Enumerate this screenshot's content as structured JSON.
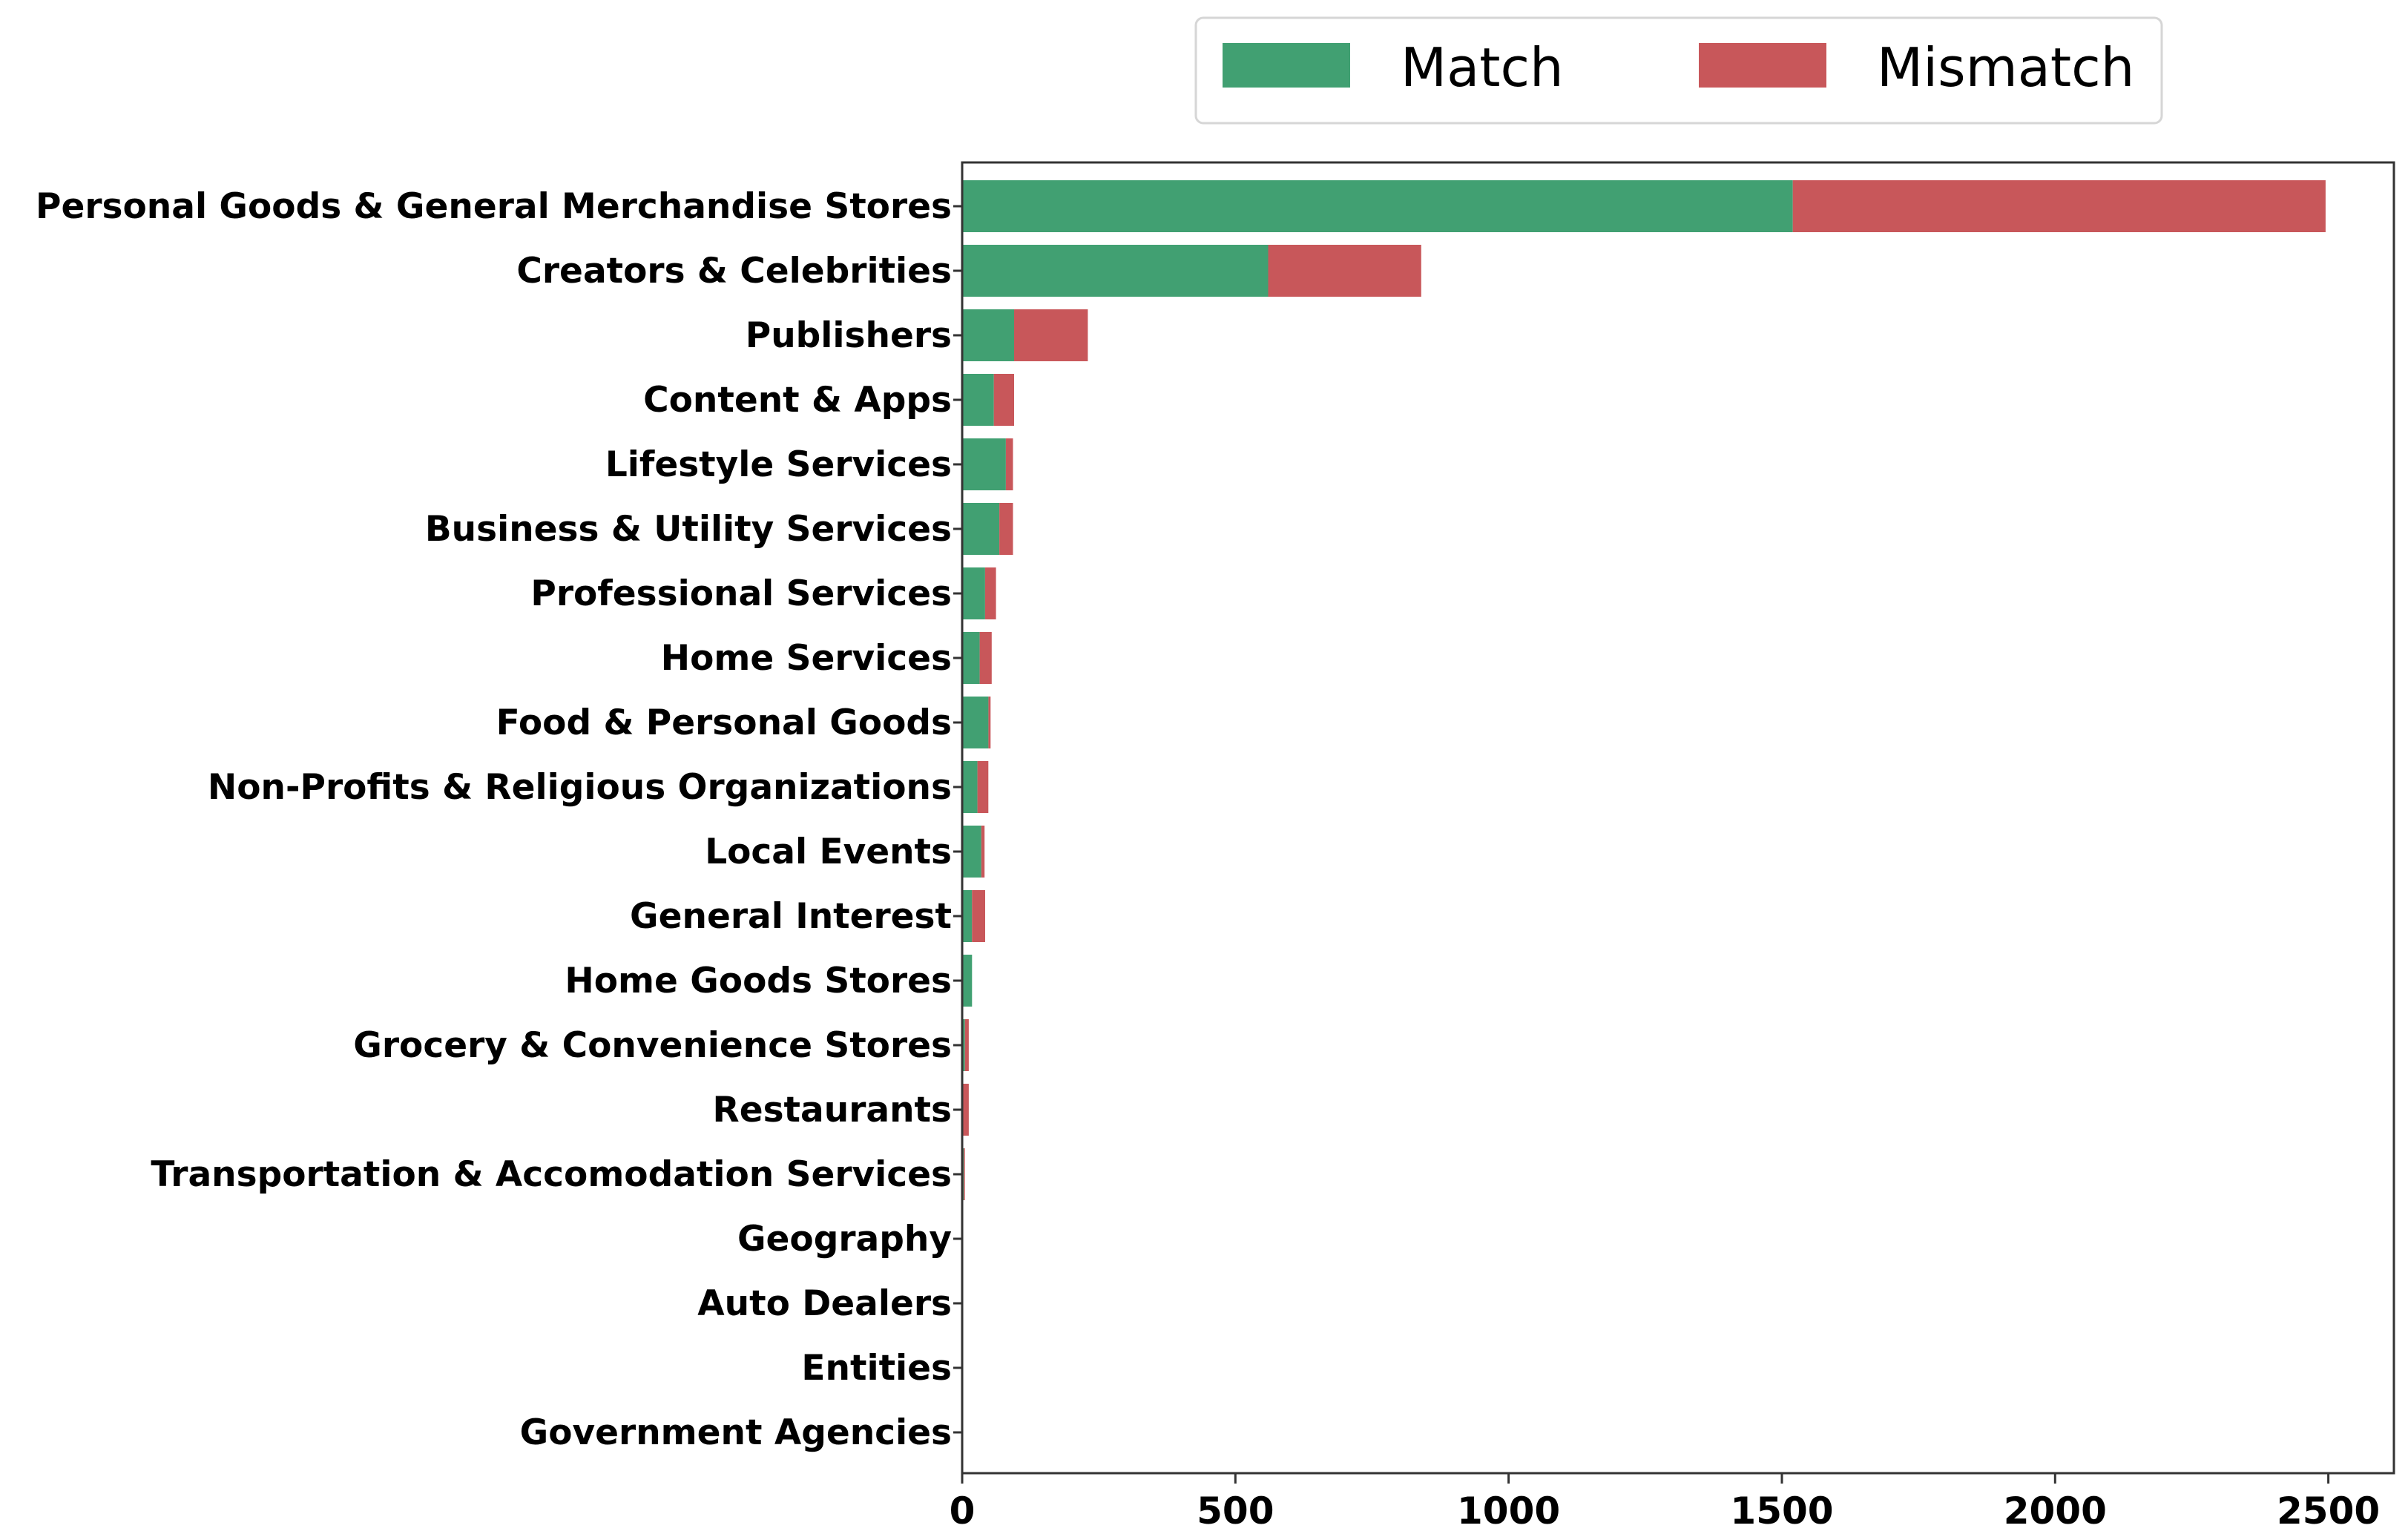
{
  "chart_data": {
    "type": "bar",
    "orientation": "horizontal",
    "stacked": true,
    "categories": [
      "Personal Goods & General Merchandise Stores",
      "Creators & Celebrities",
      "Publishers",
      "Content & Apps",
      "Lifestyle Services",
      "Business & Utility Services",
      "Professional Services",
      "Home Services",
      "Food & Personal Goods",
      "Non-Profits & Religious Organizations",
      "Local Events",
      "General Interest",
      "Home Goods Stores",
      "Grocery & Convenience Stores",
      "Restaurants",
      "Transportation & Accomodation Services",
      "Geography",
      "Auto Dealers",
      "Entities",
      "Government Agencies"
    ],
    "series": [
      {
        "name": "Match",
        "color": "#41a072",
        "values": [
          1520,
          560,
          95,
          58,
          80,
          68,
          42,
          32,
          48,
          28,
          35,
          18,
          18,
          5,
          2,
          3,
          1,
          0,
          0,
          0
        ]
      },
      {
        "name": "Mismatch",
        "color": "#c8575a",
        "values": [
          975,
          280,
          135,
          37,
          13,
          25,
          20,
          22,
          4,
          20,
          6,
          24,
          0,
          7,
          10,
          2,
          0,
          0,
          0,
          0
        ]
      }
    ],
    "xlim": [
      0,
      2620
    ],
    "xticks": [
      "0",
      "500",
      "1000",
      "1500",
      "2000",
      "2500"
    ],
    "xtick_values": [
      0,
      500,
      1000,
      1500,
      2000,
      2500
    ],
    "xlabel": "",
    "ylabel": "",
    "title": "",
    "legend": {
      "position": "top-center",
      "entries": [
        "Match",
        "Mismatch"
      ]
    },
    "grid": false
  }
}
